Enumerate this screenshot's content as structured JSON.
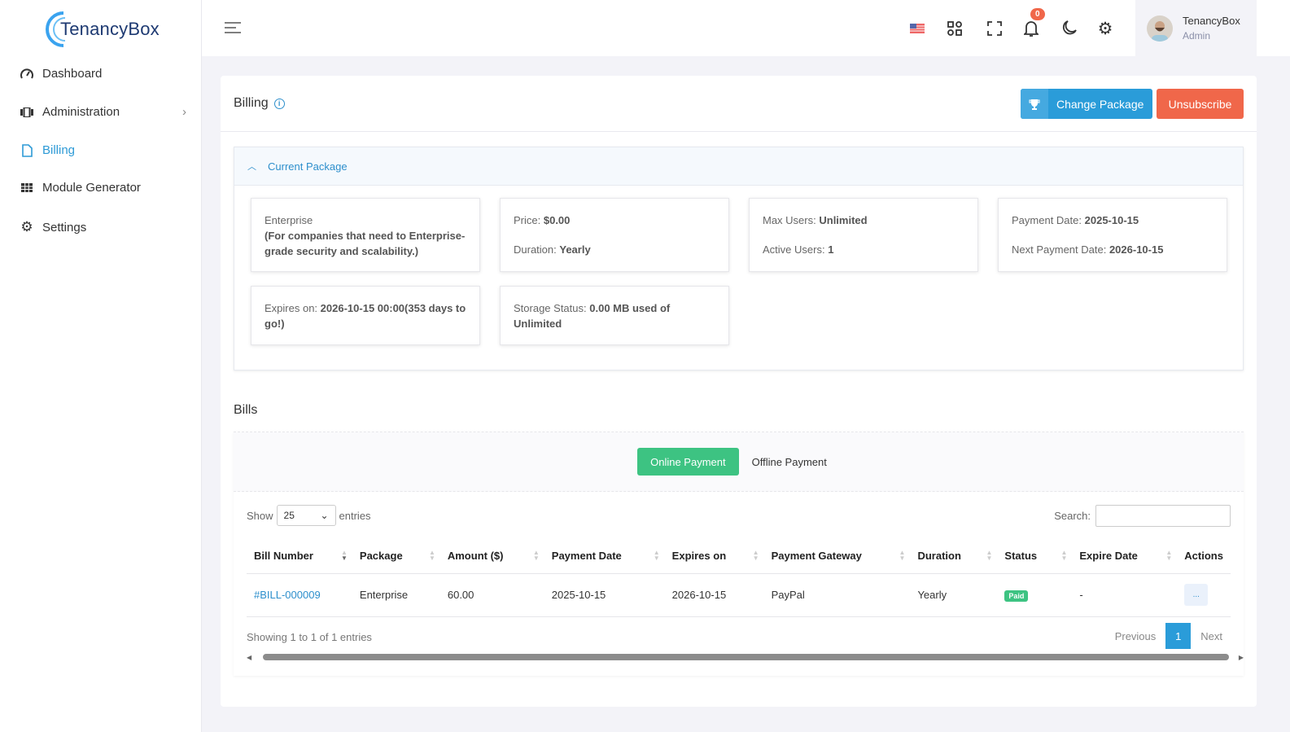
{
  "brand": {
    "name": "TenancyBox"
  },
  "sidebar": {
    "items": [
      {
        "label": "Dashboard",
        "icon": "gauge-icon"
      },
      {
        "label": "Administration",
        "icon": "admin-icon"
      },
      {
        "label": "Billing",
        "icon": "file-icon",
        "active": true
      },
      {
        "label": "Module Generator",
        "icon": "grid-icon"
      },
      {
        "label": "Settings",
        "icon": "gear-icon"
      }
    ]
  },
  "topbar": {
    "notifications": "0",
    "user": {
      "name": "TenancyBox",
      "role": "Admin"
    }
  },
  "page": {
    "title": "Billing",
    "change_package": "Change Package",
    "unsubscribe": "Unsubscribe"
  },
  "package": {
    "header": "Current Package",
    "name": "Enterprise",
    "description": "(For companies that need to Enterprise-grade security and scalability.)",
    "price_label": "Price:",
    "price": "$0.00",
    "duration_label": "Duration:",
    "duration": "Yearly",
    "max_users_label": "Max Users:",
    "max_users": "Unlimited",
    "active_users_label": "Active Users:",
    "active_users": "1",
    "payment_date_label": "Payment Date:",
    "payment_date": "2025-10-15",
    "next_payment_label": "Next Payment Date:",
    "next_payment": "2026-10-15",
    "expires_label": "Expires on:",
    "expires": "2026-10-15 00:00(353 days to go!)",
    "storage_label": "Storage Status:",
    "storage": "0.00 MB used of Unlimited"
  },
  "bills": {
    "title": "Bills",
    "tabs": [
      "Online Payment",
      "Offline Payment"
    ],
    "show": "Show",
    "entries_value": "25",
    "entries": "entries",
    "search_label": "Search:",
    "search_value": "",
    "columns": [
      "Bill Number",
      "Package",
      "Amount ($)",
      "Payment Date",
      "Expires on",
      "Payment Gateway",
      "Duration",
      "Status",
      "Expire Date",
      "Actions"
    ],
    "rows": [
      [
        "#BILL-000009",
        "Enterprise",
        "60.00",
        "2025-10-15",
        "2026-10-15",
        "PayPal",
        "Yearly",
        "Paid",
        "-",
        "..."
      ]
    ],
    "info": "Showing 1 to 1 of 1 entries",
    "previous": "Previous",
    "page": "1",
    "next": "Next"
  },
  "colors": {
    "primary": "#2a9cd9",
    "danger": "#f0674a",
    "success": "#3dc382"
  }
}
